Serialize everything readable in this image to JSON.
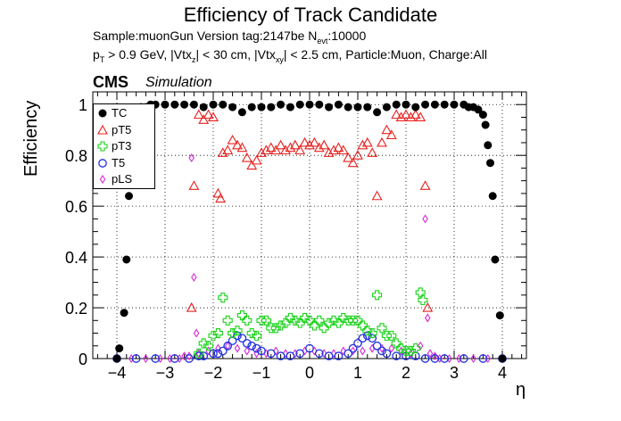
{
  "header": {
    "title": "Efficiency of Track Candidate",
    "info_line1_a": "Sample:muonGun   Version tag:2147be  N",
    "info_line1_sub": "evt",
    "info_line1_b": ":10000",
    "info_line2_parts": [
      {
        "t": "p",
        "sub": "T"
      },
      {
        "t": " > 0.9 GeV, |Vtx",
        "sub": "z"
      },
      {
        "t": "| < 30 cm, |Vtx",
        "sub": "xy"
      },
      {
        "t": "| < 2.5 cm, Particle:Muon, Charge:All",
        "sub": ""
      }
    ],
    "cms": "CMS",
    "simulation": "Simulation"
  },
  "colors": {
    "TC": "#000000",
    "pT5": "#e8201e",
    "pT3": "#19d219",
    "T5": "#1f2ee0",
    "pLS": "#d628d6"
  },
  "chart_data": {
    "type": "scatter",
    "title": "Efficiency of Track Candidate",
    "xlabel": "η",
    "ylabel": "Efficiency",
    "xlim": [
      -4.5,
      4.5
    ],
    "ylim": [
      0,
      1.05
    ],
    "xticks": [
      -4,
      -3,
      -2,
      -1,
      0,
      1,
      2,
      3,
      4
    ],
    "yticks": [
      0,
      0.2,
      0.4,
      0.6,
      0.8,
      1
    ],
    "grid": true,
    "legend": "top-left",
    "series": [
      {
        "name": "TC",
        "marker": "filled-circle",
        "x": [
          -4.0,
          -3.95,
          -3.85,
          -3.8,
          -3.75,
          -3.7,
          -3.65,
          -3.6,
          -3.5,
          -3.4,
          -3.3,
          -3.2,
          -3.0,
          -2.8,
          -2.6,
          -2.4,
          -2.2,
          -2.0,
          -1.8,
          -1.6,
          -1.4,
          -1.2,
          -1.0,
          -0.8,
          -0.6,
          -0.4,
          -0.2,
          0.0,
          0.2,
          0.4,
          0.6,
          0.8,
          1.0,
          1.2,
          1.4,
          1.6,
          1.8,
          2.0,
          2.2,
          2.4,
          2.6,
          2.8,
          3.0,
          3.2,
          3.3,
          3.4,
          3.5,
          3.6,
          3.65,
          3.7,
          3.75,
          3.8,
          3.85,
          3.95,
          4.0
        ],
        "y": [
          0.0,
          0.04,
          0.18,
          0.39,
          0.64,
          0.84,
          0.96,
          0.98,
          0.99,
          0.99,
          1.0,
          1.0,
          1.0,
          1.0,
          1.0,
          1.0,
          0.99,
          1.0,
          1.0,
          0.99,
          0.97,
          0.99,
          0.99,
          0.99,
          1.0,
          0.99,
          1.0,
          1.0,
          1.0,
          0.99,
          1.0,
          0.99,
          0.99,
          0.99,
          0.97,
          0.99,
          1.0,
          1.0,
          0.99,
          1.0,
          1.0,
          1.0,
          1.0,
          1.0,
          0.99,
          0.99,
          0.98,
          0.96,
          0.92,
          0.84,
          0.77,
          0.64,
          0.39,
          0.17,
          0.0
        ]
      },
      {
        "name": "pT5",
        "marker": "open-triangle",
        "x": [
          -2.45,
          -2.4,
          -2.3,
          -2.2,
          -2.1,
          -2.0,
          -1.9,
          -1.85,
          -1.8,
          -1.7,
          -1.6,
          -1.5,
          -1.4,
          -1.3,
          -1.2,
          -1.1,
          -1.0,
          -0.9,
          -0.8,
          -0.7,
          -0.6,
          -0.5,
          -0.4,
          -0.3,
          -0.2,
          -0.1,
          0.0,
          0.1,
          0.2,
          0.3,
          0.4,
          0.5,
          0.6,
          0.7,
          0.8,
          0.9,
          1.0,
          1.1,
          1.2,
          1.3,
          1.4,
          1.5,
          1.6,
          1.7,
          1.8,
          1.9,
          2.0,
          2.1,
          2.2,
          2.3,
          2.4,
          2.45
        ],
        "y": [
          0.2,
          0.68,
          0.96,
          0.94,
          0.96,
          0.95,
          0.65,
          0.63,
          0.81,
          0.82,
          0.86,
          0.84,
          0.83,
          0.79,
          0.76,
          0.78,
          0.81,
          0.82,
          0.83,
          0.82,
          0.84,
          0.82,
          0.83,
          0.84,
          0.82,
          0.85,
          0.84,
          0.85,
          0.83,
          0.84,
          0.81,
          0.82,
          0.83,
          0.82,
          0.79,
          0.77,
          0.8,
          0.84,
          0.85,
          0.81,
          0.64,
          0.85,
          0.9,
          0.88,
          0.96,
          0.95,
          0.96,
          0.95,
          0.96,
          0.95,
          0.68,
          0.2
        ]
      },
      {
        "name": "pT3",
        "marker": "open-cross",
        "x": [
          -2.3,
          -2.2,
          -2.1,
          -2.0,
          -1.9,
          -1.8,
          -1.7,
          -1.6,
          -1.5,
          -1.4,
          -1.3,
          -1.2,
          -1.1,
          -1.0,
          -0.9,
          -0.8,
          -0.7,
          -0.6,
          -0.5,
          -0.4,
          -0.3,
          -0.2,
          -0.1,
          0.0,
          0.1,
          0.2,
          0.3,
          0.4,
          0.5,
          0.6,
          0.7,
          0.8,
          0.9,
          1.0,
          1.1,
          1.2,
          1.3,
          1.4,
          1.5,
          1.6,
          1.7,
          1.8,
          1.9,
          2.0,
          2.1,
          2.2,
          2.3,
          2.35
        ],
        "y": [
          0.02,
          0.06,
          0.05,
          0.09,
          0.1,
          0.24,
          0.15,
          0.1,
          0.11,
          0.17,
          0.15,
          0.1,
          0.09,
          0.15,
          0.15,
          0.12,
          0.12,
          0.13,
          0.14,
          0.16,
          0.15,
          0.14,
          0.16,
          0.15,
          0.13,
          0.15,
          0.12,
          0.14,
          0.15,
          0.14,
          0.16,
          0.15,
          0.15,
          0.15,
          0.13,
          0.11,
          0.1,
          0.25,
          0.12,
          0.09,
          0.09,
          0.06,
          0.04,
          0.03,
          0.03,
          0.04,
          0.26,
          0.23
        ]
      },
      {
        "name": "T5",
        "marker": "open-circle",
        "x": [
          -4.0,
          -3.6,
          -3.2,
          -2.8,
          -2.5,
          -2.3,
          -2.2,
          -2.0,
          -1.9,
          -1.8,
          -1.7,
          -1.6,
          -1.5,
          -1.4,
          -1.3,
          -1.2,
          -1.1,
          -1.0,
          -0.8,
          -0.6,
          -0.4,
          -0.2,
          0.0,
          0.2,
          0.4,
          0.6,
          0.8,
          0.9,
          1.0,
          1.1,
          1.2,
          1.3,
          1.4,
          1.5,
          1.6,
          1.8,
          2.0,
          2.2,
          2.4,
          2.6,
          2.8,
          3.2,
          3.6,
          4.0
        ],
        "y": [
          0.0,
          0.0,
          0.0,
          0.0,
          0.0,
          0.01,
          0.01,
          0.02,
          0.02,
          0.03,
          0.05,
          0.07,
          0.09,
          0.08,
          0.06,
          0.05,
          0.04,
          0.03,
          0.02,
          0.01,
          0.01,
          0.02,
          0.04,
          0.02,
          0.01,
          0.01,
          0.02,
          0.04,
          0.06,
          0.08,
          0.09,
          0.08,
          0.05,
          0.03,
          0.02,
          0.01,
          0.01,
          0.01,
          0.0,
          0.0,
          0.0,
          0.0,
          0.0,
          0.0
        ]
      },
      {
        "name": "pLS",
        "marker": "open-diamond",
        "x": [
          -4.0,
          -3.7,
          -3.4,
          -3.1,
          -2.9,
          -2.7,
          -2.6,
          -2.5,
          -2.45,
          -2.4,
          -2.35,
          -2.3,
          -2.1,
          -1.9,
          -1.7,
          -1.5,
          -1.3,
          -1.1,
          -0.9,
          -0.7,
          -0.5,
          -0.3,
          -0.1,
          0.1,
          0.3,
          0.5,
          0.7,
          0.9,
          1.1,
          1.3,
          1.5,
          1.7,
          1.9,
          2.1,
          2.3,
          2.4,
          2.45,
          2.5,
          2.6,
          2.7,
          2.9,
          3.1,
          3.4,
          3.7,
          4.0
        ],
        "y": [
          0.0,
          0.0,
          0.0,
          0.0,
          0.0,
          0.0,
          0.01,
          0.01,
          0.79,
          0.32,
          0.1,
          0.02,
          0.03,
          0.04,
          0.05,
          0.04,
          0.03,
          0.02,
          0.02,
          0.03,
          0.02,
          0.02,
          0.03,
          0.03,
          0.02,
          0.02,
          0.03,
          0.03,
          0.03,
          0.04,
          0.04,
          0.04,
          0.03,
          0.02,
          0.05,
          0.55,
          0.16,
          0.02,
          0.01,
          0.0,
          0.0,
          0.0,
          0.0,
          0.0,
          0.0
        ]
      }
    ]
  }
}
